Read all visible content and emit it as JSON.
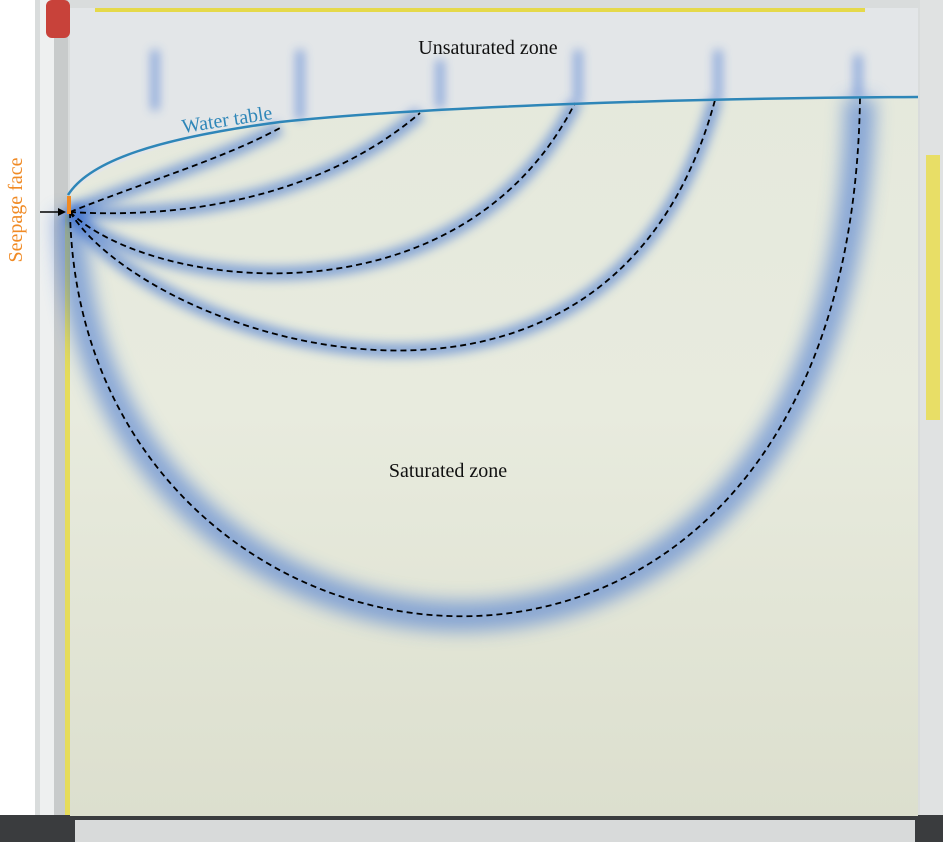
{
  "labels": {
    "unsaturated": "Unsaturated zone",
    "water_table": "Water table",
    "saturated": "Saturated zone",
    "seepage_face": "Seepage face"
  }
}
